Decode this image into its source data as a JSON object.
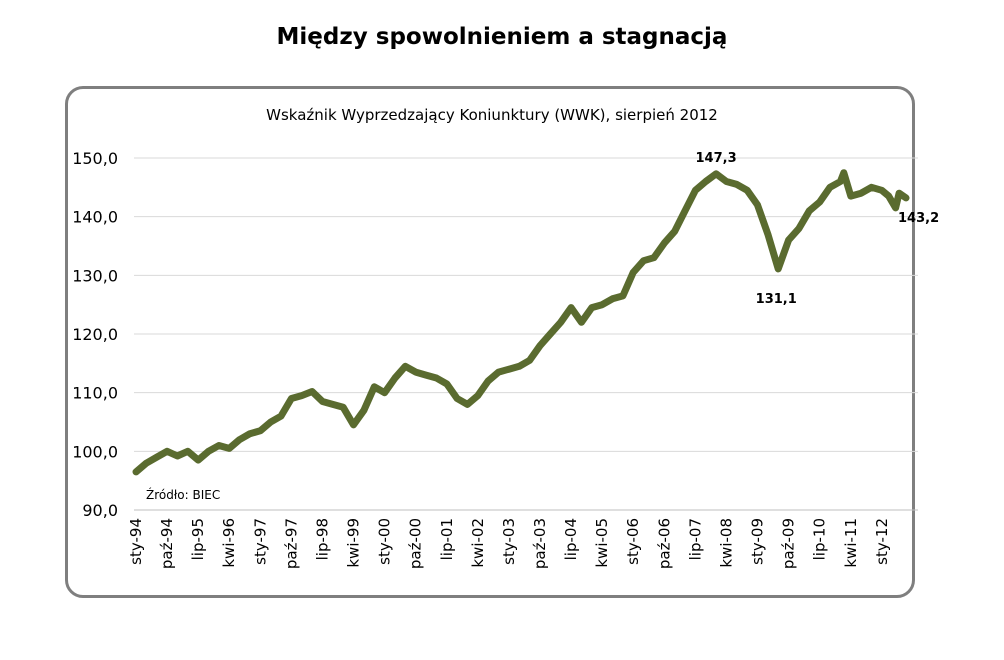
{
  "page": {
    "title": "Między spowolnieniem a stagnacją"
  },
  "chart_data": {
    "type": "line",
    "title": "Wskaźnik Wyprzedzający Koniunktury (WWK), sierpień 2012",
    "xlabel": "",
    "ylabel": "",
    "ylim": [
      90,
      150
    ],
    "yticks": [
      "90,0",
      "100,0",
      "110,0",
      "120,0",
      "130,0",
      "140,0",
      "150,0"
    ],
    "ytick_values": [
      90,
      100,
      110,
      120,
      130,
      140,
      150
    ],
    "grid": true,
    "source_note": "Źródło: BIEC",
    "x_tick_labels": [
      "sty-94",
      "paź-94",
      "lip-95",
      "kwi-96",
      "sty-97",
      "paź-97",
      "lip-98",
      "kwi-99",
      "sty-00",
      "paź-00",
      "lip-01",
      "kwi-02",
      "sty-03",
      "paź-03",
      "lip-04",
      "kwi-05",
      "sty-06",
      "paź-06",
      "lip-07",
      "kwi-08",
      "sty-09",
      "paź-09",
      "lip-10",
      "kwi-11",
      "sty-12"
    ],
    "x_start": "1994-01",
    "x_end": "2012-08",
    "series": [
      {
        "color": "#5a6b2f",
        "points": [
          [
            "1994-01",
            96.5
          ],
          [
            "1994-04",
            98
          ],
          [
            "1994-07",
            99
          ],
          [
            "1994-10",
            100
          ],
          [
            "1995-01",
            99.2
          ],
          [
            "1995-04",
            100
          ],
          [
            "1995-07",
            98.5
          ],
          [
            "1995-10",
            100
          ],
          [
            "1996-01",
            101
          ],
          [
            "1996-04",
            100.5
          ],
          [
            "1996-07",
            102
          ],
          [
            "1996-10",
            103
          ],
          [
            "1997-01",
            103.5
          ],
          [
            "1997-04",
            105
          ],
          [
            "1997-07",
            106
          ],
          [
            "1997-10",
            109
          ],
          [
            "1998-01",
            109.5
          ],
          [
            "1998-04",
            110.2
          ],
          [
            "1998-07",
            108.5
          ],
          [
            "1998-10",
            108
          ],
          [
            "1999-01",
            107.5
          ],
          [
            "1999-04",
            104.5
          ],
          [
            "1999-07",
            107
          ],
          [
            "1999-10",
            111
          ],
          [
            "2000-01",
            110
          ],
          [
            "2000-04",
            112.5
          ],
          [
            "2000-07",
            114.5
          ],
          [
            "2000-10",
            113.5
          ],
          [
            "2001-01",
            113
          ],
          [
            "2001-04",
            112.5
          ],
          [
            "2001-07",
            111.5
          ],
          [
            "2001-10",
            109
          ],
          [
            "2002-01",
            108
          ],
          [
            "2002-04",
            109.5
          ],
          [
            "2002-07",
            112
          ],
          [
            "2002-10",
            113.5
          ],
          [
            "2003-01",
            114
          ],
          [
            "2003-04",
            114.5
          ],
          [
            "2003-07",
            115.5
          ],
          [
            "2003-10",
            118
          ],
          [
            "2004-01",
            120
          ],
          [
            "2004-04",
            122
          ],
          [
            "2004-07",
            124.5
          ],
          [
            "2004-10",
            122
          ],
          [
            "2005-01",
            124.5
          ],
          [
            "2005-04",
            125
          ],
          [
            "2005-07",
            126
          ],
          [
            "2005-10",
            126.5
          ],
          [
            "2006-01",
            130.5
          ],
          [
            "2006-04",
            132.5
          ],
          [
            "2006-07",
            133
          ],
          [
            "2006-10",
            135.5
          ],
          [
            "2007-01",
            137.5
          ],
          [
            "2007-04",
            141
          ],
          [
            "2007-07",
            144.5
          ],
          [
            "2007-10",
            146
          ],
          [
            "2008-01",
            147.3
          ],
          [
            "2008-04",
            146
          ],
          [
            "2008-07",
            145.5
          ],
          [
            "2008-10",
            144.5
          ],
          [
            "2009-01",
            142
          ],
          [
            "2009-04",
            137
          ],
          [
            "2009-07",
            131.1
          ],
          [
            "2009-10",
            136
          ],
          [
            "2010-01",
            138
          ],
          [
            "2010-04",
            141
          ],
          [
            "2010-07",
            142.5
          ],
          [
            "2010-10",
            145
          ],
          [
            "2011-01",
            146
          ],
          [
            "2011-02",
            147.5
          ],
          [
            "2011-04",
            143.5
          ],
          [
            "2011-07",
            144
          ],
          [
            "2011-10",
            145
          ],
          [
            "2012-01",
            144.5
          ],
          [
            "2012-03",
            143.5
          ],
          [
            "2012-05",
            141.5
          ],
          [
            "2012-06",
            144
          ],
          [
            "2012-08",
            143.2
          ]
        ]
      }
    ],
    "annotations": [
      {
        "text": "147,3",
        "value": 147.3
      },
      {
        "text": "131,1",
        "value": 131.1
      },
      {
        "text": "143,2",
        "value": 143.2
      }
    ]
  }
}
